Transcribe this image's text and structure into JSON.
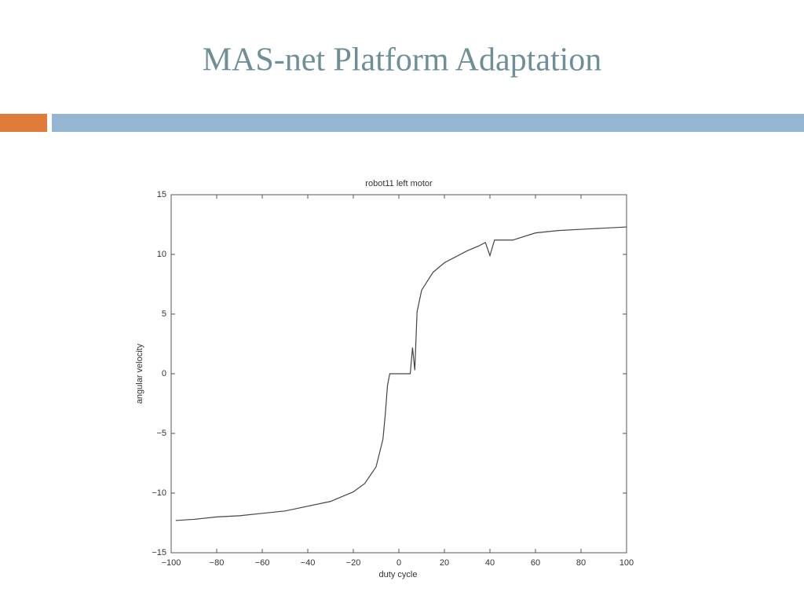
{
  "slide_title": "MAS-net Platform Adaptation",
  "chart_data": {
    "type": "line",
    "title": "robot11   left motor",
    "x_label": "duty cycle",
    "y_label": "angular velocity",
    "x": [
      -98,
      -90,
      -80,
      -70,
      -60,
      -50,
      -40,
      -30,
      -20,
      -15,
      -10,
      -7,
      -6,
      -5,
      -4,
      0,
      5,
      6,
      7,
      8,
      10,
      15,
      20,
      30,
      35,
      38,
      40,
      42,
      50,
      60,
      70,
      80,
      90,
      100
    ],
    "series": [
      {
        "name": "left motor",
        "color": "#444444",
        "values": [
          -12.3,
          -12.2,
          -12.0,
          -11.9,
          -11.7,
          -11.5,
          -11.1,
          -10.7,
          -9.9,
          -9.2,
          -7.8,
          -5.5,
          -3.5,
          -1.0,
          0,
          0,
          0,
          2.2,
          0.3,
          5.2,
          7.0,
          8.5,
          9.3,
          10.3,
          10.7,
          11.0,
          9.9,
          11.2,
          11.2,
          11.8,
          12.0,
          12.1,
          12.2,
          12.3
        ]
      }
    ],
    "xlim": [
      -100,
      100
    ],
    "xticks": [
      {
        "value": -100,
        "label": "−100"
      },
      {
        "value": -80,
        "label": "−80"
      },
      {
        "value": -60,
        "label": "−60"
      },
      {
        "value": -40,
        "label": "−40"
      },
      {
        "value": -20,
        "label": "−20"
      },
      0,
      20,
      40,
      60,
      80,
      100
    ],
    "ylim": [
      -15,
      15
    ],
    "yticks": [
      {
        "value": -15,
        "label": "−15"
      },
      {
        "value": -10,
        "label": "−10"
      },
      {
        "value": -5,
        "label": "−5"
      },
      0,
      5,
      10,
      15
    ]
  }
}
